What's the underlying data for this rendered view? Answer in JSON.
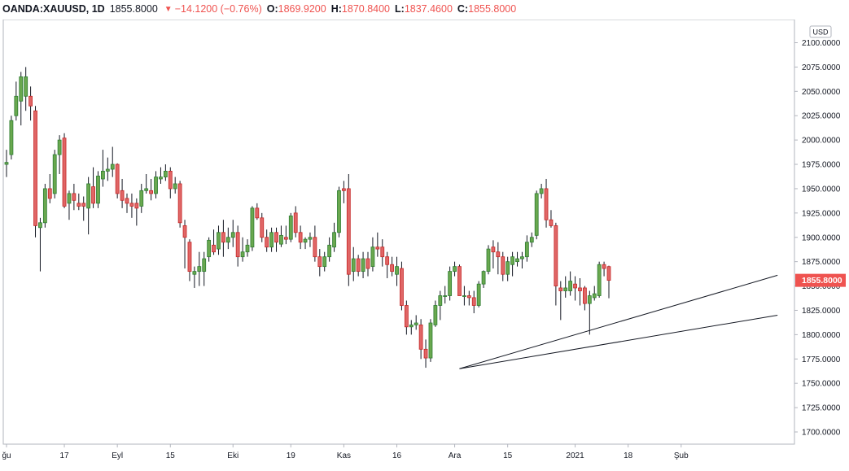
{
  "header": {
    "symbol": "OANDA:XAUUSD, 1D",
    "last": "1855.8000",
    "change": "−14.1200 (−0.76%)",
    "open_label": "O:",
    "open": "1869.9200",
    "high_label": "H:",
    "high": "1870.8400",
    "low_label": "L:",
    "low": "1837.4600",
    "close_label": "C:",
    "close": "1855.8000"
  },
  "currency_badge": "USD",
  "price_badge": "1855.8000",
  "colors": {
    "up": "#2e7d32",
    "up_fill": "#6aa84f",
    "down": "#c62828",
    "down_fill": "#e06666",
    "badge": "#ef5350",
    "grid_border": "#b2b5be"
  },
  "chart_data": {
    "type": "candlestick",
    "ylim": [
      1680,
      2110
    ],
    "y_ticks": [
      "2100.0000",
      "2075.0000",
      "2050.0000",
      "2025.0000",
      "2000.0000",
      "1975.0000",
      "1950.0000",
      "1925.0000",
      "1900.0000",
      "1875.0000",
      "1850.0000",
      "1825.0000",
      "1800.0000",
      "1775.0000",
      "1750.0000",
      "1725.0000",
      "1700.0000"
    ],
    "x_ticks": [
      {
        "label": "ğu",
        "i": 0
      },
      {
        "label": "17",
        "i": 12
      },
      {
        "label": "Eyl",
        "i": 23
      },
      {
        "label": "15",
        "i": 34
      },
      {
        "label": "Eki",
        "i": 47
      },
      {
        "label": "19",
        "i": 59
      },
      {
        "label": "Kas",
        "i": 70
      },
      {
        "label": "16",
        "i": 81
      },
      {
        "label": "Ara",
        "i": 93
      },
      {
        "label": "15",
        "i": 104
      },
      {
        "label": "2021",
        "i": 118
      },
      {
        "label": "18",
        "i": 129
      },
      {
        "label": "Şub",
        "i": 140
      }
    ],
    "candles": [
      {
        "o": 1975,
        "h": 1990,
        "l": 1962,
        "c": 1977
      },
      {
        "o": 1985,
        "h": 2025,
        "l": 1980,
        "c": 2020
      },
      {
        "o": 2025,
        "h": 2060,
        "l": 2020,
        "c": 2045
      },
      {
        "o": 2040,
        "h": 2070,
        "l": 2015,
        "c": 2065
      },
      {
        "o": 2045,
        "h": 2075,
        "l": 2030,
        "c": 2065
      },
      {
        "o": 2045,
        "h": 2055,
        "l": 2020,
        "c": 2035
      },
      {
        "o": 2030,
        "h": 2035,
        "l": 1900,
        "c": 1912
      },
      {
        "o": 1910,
        "h": 1920,
        "l": 1865,
        "c": 1915
      },
      {
        "o": 1915,
        "h": 1955,
        "l": 1910,
        "c": 1950
      },
      {
        "o": 1950,
        "h": 1965,
        "l": 1935,
        "c": 1940
      },
      {
        "o": 1945,
        "h": 1990,
        "l": 1940,
        "c": 1985
      },
      {
        "o": 1985,
        "h": 2005,
        "l": 1965,
        "c": 2000
      },
      {
        "o": 2002,
        "h": 2007,
        "l": 1930,
        "c": 1932
      },
      {
        "o": 1935,
        "h": 1948,
        "l": 1918,
        "c": 1945
      },
      {
        "o": 1945,
        "h": 1955,
        "l": 1928,
        "c": 1938
      },
      {
        "o": 1935,
        "h": 1945,
        "l": 1928,
        "c": 1932
      },
      {
        "o": 1935,
        "h": 1942,
        "l": 1917,
        "c": 1932
      },
      {
        "o": 1930,
        "h": 1962,
        "l": 1903,
        "c": 1955
      },
      {
        "o": 1952,
        "h": 1972,
        "l": 1930,
        "c": 1935
      },
      {
        "o": 1935,
        "h": 1968,
        "l": 1930,
        "c": 1963
      },
      {
        "o": 1960,
        "h": 1990,
        "l": 1952,
        "c": 1968
      },
      {
        "o": 1968,
        "h": 1982,
        "l": 1958,
        "c": 1970
      },
      {
        "o": 1970,
        "h": 1993,
        "l": 1962,
        "c": 1975
      },
      {
        "o": 1975,
        "h": 1976,
        "l": 1940,
        "c": 1945
      },
      {
        "o": 1948,
        "h": 1960,
        "l": 1930,
        "c": 1938
      },
      {
        "o": 1940,
        "h": 1945,
        "l": 1925,
        "c": 1935
      },
      {
        "o": 1935,
        "h": 1945,
        "l": 1920,
        "c": 1932
      },
      {
        "o": 1935,
        "h": 1940,
        "l": 1912,
        "c": 1930
      },
      {
        "o": 1932,
        "h": 1955,
        "l": 1925,
        "c": 1948
      },
      {
        "o": 1948,
        "h": 1965,
        "l": 1945,
        "c": 1950
      },
      {
        "o": 1948,
        "h": 1960,
        "l": 1938,
        "c": 1945
      },
      {
        "o": 1945,
        "h": 1968,
        "l": 1940,
        "c": 1962
      },
      {
        "o": 1960,
        "h": 1972,
        "l": 1955,
        "c": 1962
      },
      {
        "o": 1962,
        "h": 1975,
        "l": 1958,
        "c": 1968
      },
      {
        "o": 1968,
        "h": 1972,
        "l": 1940,
        "c": 1950
      },
      {
        "o": 1950,
        "h": 1962,
        "l": 1945,
        "c": 1955
      },
      {
        "o": 1955,
        "h": 1958,
        "l": 1910,
        "c": 1915
      },
      {
        "o": 1912,
        "h": 1918,
        "l": 1868,
        "c": 1900
      },
      {
        "o": 1895,
        "h": 1898,
        "l": 1855,
        "c": 1865
      },
      {
        "o": 1862,
        "h": 1870,
        "l": 1848,
        "c": 1865
      },
      {
        "o": 1865,
        "h": 1885,
        "l": 1850,
        "c": 1870
      },
      {
        "o": 1865,
        "h": 1885,
        "l": 1850,
        "c": 1878
      },
      {
        "o": 1880,
        "h": 1900,
        "l": 1875,
        "c": 1897
      },
      {
        "o": 1892,
        "h": 1908,
        "l": 1882,
        "c": 1885
      },
      {
        "o": 1888,
        "h": 1912,
        "l": 1882,
        "c": 1905
      },
      {
        "o": 1905,
        "h": 1918,
        "l": 1880,
        "c": 1895
      },
      {
        "o": 1895,
        "h": 1910,
        "l": 1888,
        "c": 1900
      },
      {
        "o": 1900,
        "h": 1918,
        "l": 1890,
        "c": 1905
      },
      {
        "o": 1905,
        "h": 1912,
        "l": 1870,
        "c": 1880
      },
      {
        "o": 1880,
        "h": 1900,
        "l": 1875,
        "c": 1885
      },
      {
        "o": 1885,
        "h": 1898,
        "l": 1880,
        "c": 1892
      },
      {
        "o": 1890,
        "h": 1932,
        "l": 1886,
        "c": 1930
      },
      {
        "o": 1930,
        "h": 1935,
        "l": 1918,
        "c": 1920
      },
      {
        "o": 1920,
        "h": 1925,
        "l": 1895,
        "c": 1900
      },
      {
        "o": 1900,
        "h": 1908,
        "l": 1885,
        "c": 1890
      },
      {
        "o": 1890,
        "h": 1910,
        "l": 1885,
        "c": 1905
      },
      {
        "o": 1905,
        "h": 1910,
        "l": 1885,
        "c": 1895
      },
      {
        "o": 1893,
        "h": 1912,
        "l": 1890,
        "c": 1902
      },
      {
        "o": 1900,
        "h": 1912,
        "l": 1893,
        "c": 1898
      },
      {
        "o": 1898,
        "h": 1925,
        "l": 1895,
        "c": 1922
      },
      {
        "o": 1925,
        "h": 1932,
        "l": 1900,
        "c": 1905
      },
      {
        "o": 1905,
        "h": 1912,
        "l": 1888,
        "c": 1895
      },
      {
        "o": 1895,
        "h": 1900,
        "l": 1888,
        "c": 1898
      },
      {
        "o": 1898,
        "h": 1905,
        "l": 1890,
        "c": 1900
      },
      {
        "o": 1900,
        "h": 1912,
        "l": 1875,
        "c": 1880
      },
      {
        "o": 1880,
        "h": 1888,
        "l": 1860,
        "c": 1870
      },
      {
        "o": 1870,
        "h": 1885,
        "l": 1865,
        "c": 1880
      },
      {
        "o": 1880,
        "h": 1900,
        "l": 1875,
        "c": 1892
      },
      {
        "o": 1890,
        "h": 1915,
        "l": 1885,
        "c": 1905
      },
      {
        "o": 1905,
        "h": 1952,
        "l": 1900,
        "c": 1948
      },
      {
        "o": 1950,
        "h": 1958,
        "l": 1935,
        "c": 1948
      },
      {
        "o": 1950,
        "h": 1965,
        "l": 1850,
        "c": 1862
      },
      {
        "o": 1865,
        "h": 1890,
        "l": 1855,
        "c": 1878
      },
      {
        "o": 1878,
        "h": 1882,
        "l": 1860,
        "c": 1865
      },
      {
        "o": 1865,
        "h": 1885,
        "l": 1858,
        "c": 1878
      },
      {
        "o": 1878,
        "h": 1885,
        "l": 1860,
        "c": 1868
      },
      {
        "o": 1870,
        "h": 1900,
        "l": 1865,
        "c": 1890
      },
      {
        "o": 1890,
        "h": 1905,
        "l": 1880,
        "c": 1888
      },
      {
        "o": 1890,
        "h": 1898,
        "l": 1870,
        "c": 1880
      },
      {
        "o": 1880,
        "h": 1885,
        "l": 1858,
        "c": 1872
      },
      {
        "o": 1872,
        "h": 1880,
        "l": 1860,
        "c": 1865
      },
      {
        "o": 1862,
        "h": 1880,
        "l": 1850,
        "c": 1870
      },
      {
        "o": 1868,
        "h": 1875,
        "l": 1825,
        "c": 1830
      },
      {
        "o": 1830,
        "h": 1835,
        "l": 1800,
        "c": 1808
      },
      {
        "o": 1808,
        "h": 1815,
        "l": 1800,
        "c": 1810
      },
      {
        "o": 1810,
        "h": 1820,
        "l": 1805,
        "c": 1812
      },
      {
        "o": 1810,
        "h": 1816,
        "l": 1775,
        "c": 1785
      },
      {
        "o": 1785,
        "h": 1795,
        "l": 1766,
        "c": 1776
      },
      {
        "o": 1776,
        "h": 1816,
        "l": 1772,
        "c": 1812
      },
      {
        "o": 1810,
        "h": 1835,
        "l": 1808,
        "c": 1830
      },
      {
        "o": 1830,
        "h": 1845,
        "l": 1815,
        "c": 1840
      },
      {
        "o": 1840,
        "h": 1850,
        "l": 1832,
        "c": 1840
      },
      {
        "o": 1840,
        "h": 1870,
        "l": 1835,
        "c": 1865
      },
      {
        "o": 1865,
        "h": 1875,
        "l": 1860,
        "c": 1870
      },
      {
        "o": 1870,
        "h": 1872,
        "l": 1840,
        "c": 1840
      },
      {
        "o": 1840,
        "h": 1850,
        "l": 1830,
        "c": 1840
      },
      {
        "o": 1840,
        "h": 1845,
        "l": 1830,
        "c": 1838
      },
      {
        "o": 1838,
        "h": 1845,
        "l": 1822,
        "c": 1830
      },
      {
        "o": 1830,
        "h": 1855,
        "l": 1828,
        "c": 1852
      },
      {
        "o": 1852,
        "h": 1866,
        "l": 1848,
        "c": 1865
      },
      {
        "o": 1865,
        "h": 1892,
        "l": 1862,
        "c": 1888
      },
      {
        "o": 1890,
        "h": 1897,
        "l": 1868,
        "c": 1885
      },
      {
        "o": 1885,
        "h": 1895,
        "l": 1862,
        "c": 1880
      },
      {
        "o": 1880,
        "h": 1885,
        "l": 1855,
        "c": 1862
      },
      {
        "o": 1862,
        "h": 1880,
        "l": 1855,
        "c": 1875
      },
      {
        "o": 1872,
        "h": 1885,
        "l": 1860,
        "c": 1880
      },
      {
        "o": 1875,
        "h": 1885,
        "l": 1870,
        "c": 1878
      },
      {
        "o": 1878,
        "h": 1885,
        "l": 1868,
        "c": 1880
      },
      {
        "o": 1880,
        "h": 1902,
        "l": 1875,
        "c": 1895
      },
      {
        "o": 1895,
        "h": 1905,
        "l": 1890,
        "c": 1900
      },
      {
        "o": 1902,
        "h": 1948,
        "l": 1898,
        "c": 1945
      },
      {
        "o": 1945,
        "h": 1955,
        "l": 1940,
        "c": 1950
      },
      {
        "o": 1950,
        "h": 1960,
        "l": 1910,
        "c": 1918
      },
      {
        "o": 1918,
        "h": 1928,
        "l": 1910,
        "c": 1912
      },
      {
        "o": 1912,
        "h": 1915,
        "l": 1830,
        "c": 1850
      },
      {
        "o": 1848,
        "h": 1855,
        "l": 1815,
        "c": 1845
      },
      {
        "o": 1845,
        "h": 1860,
        "l": 1838,
        "c": 1848
      },
      {
        "o": 1845,
        "h": 1865,
        "l": 1840,
        "c": 1855
      },
      {
        "o": 1852,
        "h": 1860,
        "l": 1835,
        "c": 1848
      },
      {
        "o": 1848,
        "h": 1858,
        "l": 1830,
        "c": 1845
      },
      {
        "o": 1848,
        "h": 1850,
        "l": 1825,
        "c": 1832
      },
      {
        "o": 1832,
        "h": 1845,
        "l": 1800,
        "c": 1840
      },
      {
        "o": 1838,
        "h": 1850,
        "l": 1835,
        "c": 1842
      },
      {
        "o": 1840,
        "h": 1875,
        "l": 1838,
        "c": 1872
      },
      {
        "o": 1872,
        "h": 1875,
        "l": 1860,
        "c": 1868
      },
      {
        "o": 1869.92,
        "h": 1870.84,
        "l": 1837.46,
        "c": 1855.8
      }
    ],
    "trendlines": [
      {
        "from": {
          "i": 94,
          "price": 1765
        },
        "to": {
          "i": 160,
          "price": 1861
        }
      },
      {
        "from": {
          "i": 94,
          "price": 1765
        },
        "to": {
          "i": 160,
          "price": 1820
        }
      }
    ]
  }
}
